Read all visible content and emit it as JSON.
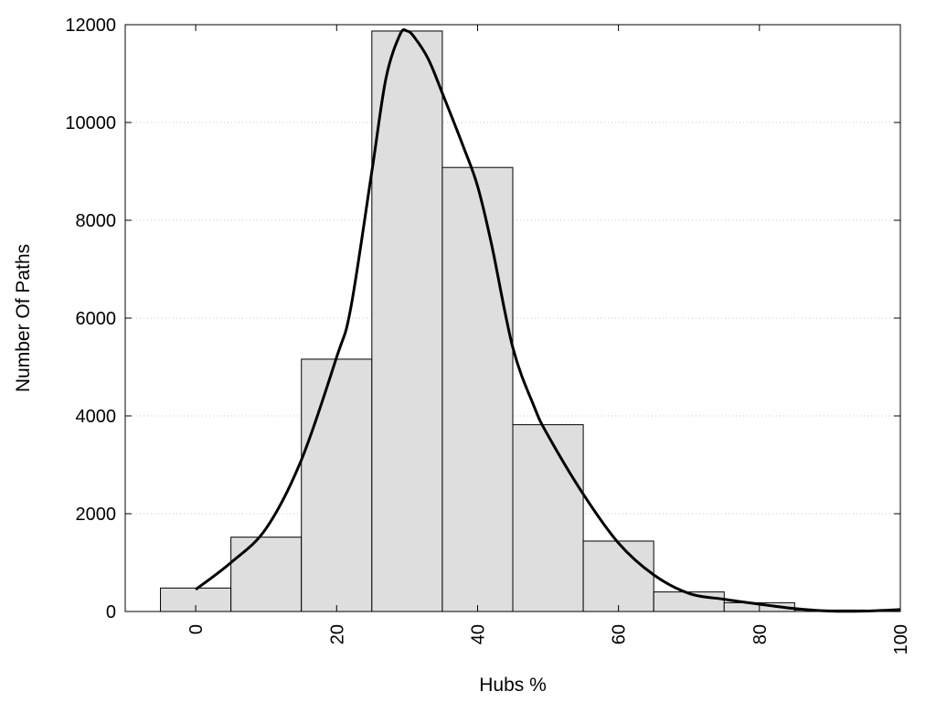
{
  "chart_data": {
    "type": "bar",
    "title": "",
    "xlabel": "Hubs %",
    "ylabel": "Number Of Paths",
    "xlim": [
      -10,
      100
    ],
    "ylim": [
      0,
      12000
    ],
    "xticks": [
      0,
      20,
      40,
      60,
      80,
      100
    ],
    "yticks": [
      0,
      2000,
      4000,
      6000,
      8000,
      10000,
      12000
    ],
    "grid": "horizontal dotted",
    "bin_width": 10,
    "bins": [
      {
        "center": 0,
        "value": 480
      },
      {
        "center": 10,
        "value": 1520
      },
      {
        "center": 20,
        "value": 5160
      },
      {
        "center": 30,
        "value": 11870
      },
      {
        "center": 40,
        "value": 9080
      },
      {
        "center": 50,
        "value": 3820
      },
      {
        "center": 60,
        "value": 1440
      },
      {
        "center": 70,
        "value": 400
      },
      {
        "center": 80,
        "value": 180
      },
      {
        "center": 90,
        "value": 30
      }
    ],
    "density_curve": {
      "x": [
        0,
        5,
        10,
        15,
        20,
        22,
        25,
        27,
        29,
        30,
        31,
        33,
        35,
        38,
        40,
        42,
        45,
        48,
        50,
        55,
        60,
        65,
        70,
        75,
        80,
        85,
        90,
        95,
        100
      ],
      "y": [
        450,
        1000,
        1700,
        3100,
        5200,
        6200,
        9000,
        10900,
        11800,
        11870,
        11750,
        11300,
        10600,
        9500,
        8700,
        7500,
        5400,
        4200,
        3600,
        2400,
        1400,
        750,
        370,
        250,
        150,
        60,
        10,
        10,
        40
      ]
    },
    "colors": {
      "bar_fill": "#dedede",
      "bar_stroke": "#000000",
      "curve": "#000000",
      "grid": "#c8c8c8"
    }
  }
}
